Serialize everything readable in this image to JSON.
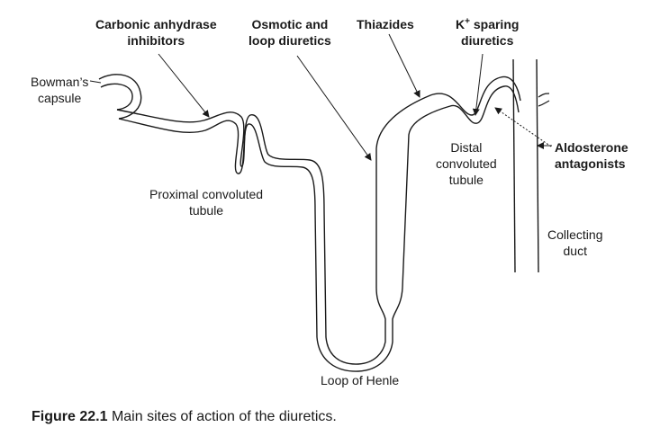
{
  "labels": {
    "carbonic_anhydrase": [
      "Carbonic anhydrase",
      "inhibitors"
    ],
    "osmotic_loop": [
      "Osmotic and",
      "loop diuretics"
    ],
    "thiazides": "Thiazides",
    "k_sparing": {
      "prefix": "K",
      "superscript": "+",
      "line1_rest": " sparing",
      "line2": "diuretics"
    },
    "aldosterone": [
      "Aldosterone",
      "antagonists"
    ],
    "bowmans": [
      "Bowman’s",
      "capsule"
    ],
    "proximal": [
      "Proximal convoluted",
      "tubule"
    ],
    "distal": [
      "Distal",
      "convoluted",
      "tubule"
    ],
    "collecting": [
      "Collecting",
      "duct"
    ],
    "loop_henle": "Loop of Henle"
  },
  "caption": {
    "number": "Figure 22.1",
    "text": "Main sites of action of the diuretics."
  },
  "colors": {
    "line": "#1a1a1a",
    "text": "#1a1a1a",
    "background": "#ffffff"
  }
}
